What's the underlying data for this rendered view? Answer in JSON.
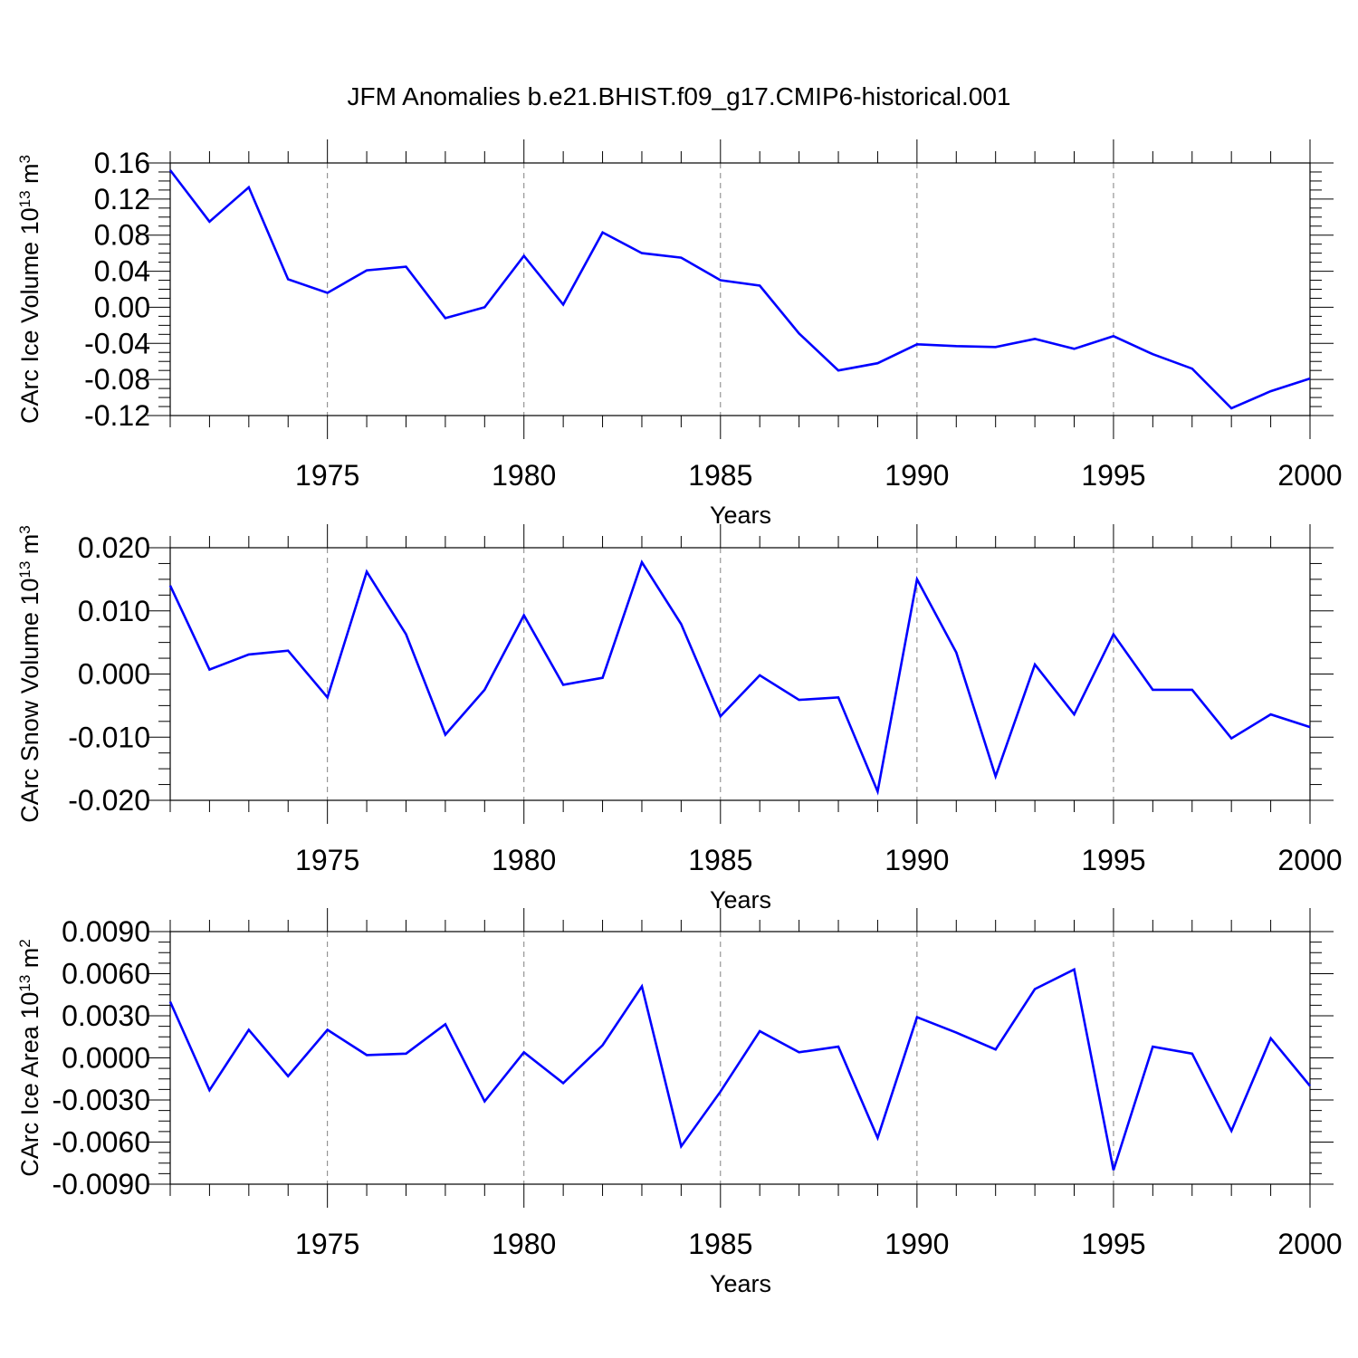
{
  "title": "JFM Anomalies b.e21.BHIST.f09_g17.CMIP6-historical.001",
  "colors": {
    "line": "#0000ff",
    "axes": "#000000",
    "grid": "#808080"
  },
  "chart_data": [
    {
      "type": "line",
      "ylabel": {
        "base": "CArc Ice Volume 10",
        "exp": "13",
        "unit": " m",
        "unit_exp": "3"
      },
      "xlabel": "Years",
      "xlim": [
        1971,
        2000
      ],
      "ylim": [
        -0.12,
        0.16
      ],
      "yticks": [
        0.16,
        0.12,
        0.08,
        0.04,
        0.0,
        -0.04,
        -0.08,
        -0.12
      ],
      "ytick_labels": [
        "0.16",
        "0.12",
        "0.08",
        "0.04",
        "0.00",
        "-0.04",
        "-0.08",
        "-0.12"
      ],
      "xticks": [
        1975,
        1980,
        1985,
        1990,
        1995,
        2000
      ],
      "xtick_labels": [
        "1975",
        "1980",
        "1985",
        "1990",
        "1995",
        "2000"
      ],
      "grid": "vertical dashed at major x ticks",
      "series": [
        {
          "x": [
            1971,
            1972,
            1973,
            1974,
            1975,
            1976,
            1977,
            1978,
            1979,
            1980,
            1981,
            1982,
            1983,
            1984,
            1985,
            1986,
            1987,
            1988,
            1989,
            1990,
            1991,
            1992,
            1993,
            1994,
            1995,
            1996,
            1997,
            1998,
            1999,
            2000
          ],
          "values": [
            0.152,
            0.095,
            0.133,
            0.031,
            0.016,
            0.041,
            0.045,
            -0.012,
            0.0,
            0.057,
            0.003,
            0.083,
            0.06,
            0.055,
            0.03,
            0.024,
            -0.029,
            -0.07,
            -0.062,
            -0.041,
            -0.043,
            -0.044,
            -0.035,
            -0.046,
            -0.032,
            -0.052,
            -0.068,
            -0.112,
            -0.093,
            -0.079
          ]
        }
      ]
    },
    {
      "type": "line",
      "ylabel": {
        "base": "CArc Snow Volume 10",
        "exp": "13",
        "unit": " m",
        "unit_exp": "3"
      },
      "xlabel": "Years",
      "xlim": [
        1971,
        2000
      ],
      "ylim": [
        -0.02,
        0.02
      ],
      "yticks": [
        0.02,
        0.01,
        0.0,
        -0.01,
        -0.02
      ],
      "ytick_labels": [
        "0.020",
        "0.010",
        "0.000",
        "-0.010",
        "-0.020"
      ],
      "xticks": [
        1975,
        1980,
        1985,
        1990,
        1995,
        2000
      ],
      "xtick_labels": [
        "1975",
        "1980",
        "1985",
        "1990",
        "1995",
        "2000"
      ],
      "grid": "vertical dashed at major x ticks",
      "series": [
        {
          "x": [
            1971,
            1972,
            1973,
            1974,
            1975,
            1976,
            1977,
            1978,
            1979,
            1980,
            1981,
            1982,
            1983,
            1984,
            1985,
            1986,
            1987,
            1988,
            1989,
            1990,
            1991,
            1992,
            1993,
            1994,
            1995,
            1996,
            1997,
            1998,
            1999,
            2000
          ],
          "values": [
            0.014,
            0.0007,
            0.0031,
            0.0037,
            -0.0037,
            0.0162,
            0.0063,
            -0.0096,
            -0.0025,
            0.0093,
            -0.0017,
            -0.0006,
            0.0177,
            0.0079,
            -0.0067,
            -0.0002,
            -0.0041,
            -0.0037,
            -0.0186,
            0.015,
            0.0034,
            -0.0162,
            0.0015,
            -0.0064,
            0.0063,
            -0.0025,
            -0.0025,
            -0.0102,
            -0.0064,
            -0.0084
          ]
        }
      ]
    },
    {
      "type": "line",
      "ylabel": {
        "base": "CArc Ice Area 10",
        "exp": "13",
        "unit": " m",
        "unit_exp": "2"
      },
      "xlabel": "Years",
      "xlim": [
        1971,
        2000
      ],
      "ylim": [
        -0.009,
        0.009
      ],
      "yticks": [
        0.009,
        0.006,
        0.003,
        0.0,
        -0.003,
        -0.006,
        -0.009
      ],
      "ytick_labels": [
        "0.0090",
        "0.0060",
        "0.0030",
        "0.0000",
        "-0.0030",
        "-0.0060",
        "-0.0090"
      ],
      "xticks": [
        1975,
        1980,
        1985,
        1990,
        1995,
        2000
      ],
      "xtick_labels": [
        "1975",
        "1980",
        "1985",
        "1990",
        "1995",
        "2000"
      ],
      "grid": "vertical dashed at major x ticks",
      "series": [
        {
          "x": [
            1971,
            1972,
            1973,
            1974,
            1975,
            1976,
            1977,
            1978,
            1979,
            1980,
            1981,
            1982,
            1983,
            1984,
            1985,
            1986,
            1987,
            1988,
            1989,
            1990,
            1991,
            1992,
            1993,
            1994,
            1995,
            1996,
            1997,
            1998,
            1999,
            2000
          ],
          "values": [
            0.004,
            -0.0023,
            0.002,
            -0.0013,
            0.002,
            0.0002,
            0.0003,
            0.0024,
            -0.0031,
            0.0004,
            -0.0018,
            0.0009,
            0.0051,
            -0.0063,
            -0.0024,
            0.0019,
            0.0004,
            0.0008,
            -0.0057,
            0.0029,
            0.0018,
            0.0006,
            0.0049,
            0.0063,
            -0.008,
            0.0008,
            0.0003,
            -0.0052,
            0.0014,
            -0.002
          ]
        }
      ]
    }
  ]
}
